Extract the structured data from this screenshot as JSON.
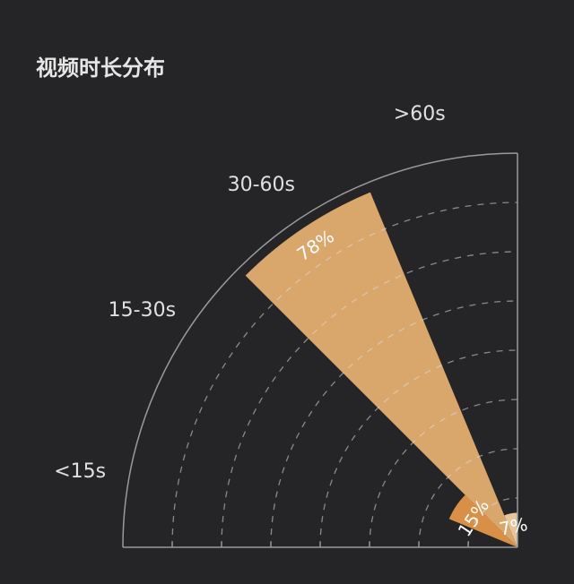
{
  "chart_data": {
    "type": "polar-bar",
    "title": "视频时长分布",
    "categories": [
      "<15s",
      "15-30s",
      "30-60s",
      ">60s"
    ],
    "values": [
      0,
      15,
      78,
      7
    ],
    "value_labels": [
      "",
      "15%",
      "78%",
      "7%"
    ],
    "rlim": [
      0,
      80
    ],
    "radial_gridlines": 8,
    "angular_range_deg": [
      90,
      180
    ],
    "colors": [
      "#d9a66c",
      "#d98f45",
      "#d9a66c",
      "#e8c49a"
    ],
    "background": "#252528",
    "grid": true
  }
}
